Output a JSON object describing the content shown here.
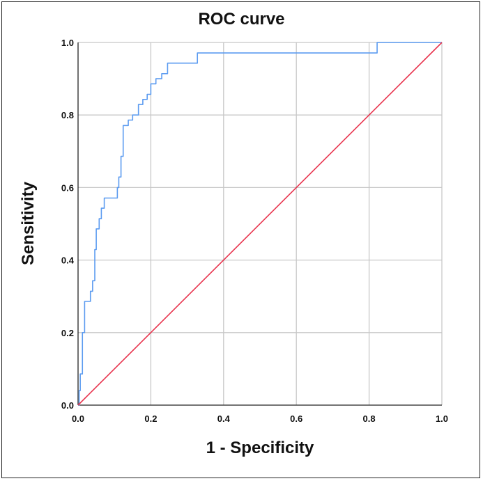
{
  "chart_data": {
    "type": "line",
    "title": "ROC curve",
    "xlabel": "1 - Specificity",
    "ylabel": "Sensitivity",
    "xlim": [
      0,
      1
    ],
    "ylim": [
      0,
      1
    ],
    "x_ticks": [
      "0.0",
      "0.2",
      "0.4",
      "0.6",
      "0.8",
      "1.0"
    ],
    "y_ticks": [
      "0.0",
      "0.2",
      "0.4",
      "0.6",
      "0.8",
      "1.0"
    ],
    "grid": true,
    "legend": "none",
    "colors": {
      "roc_curve": "#5b9bf0",
      "reference_line": "#e8344e",
      "grid": "#c8c8c8"
    },
    "series": [
      {
        "key": "roc_curve",
        "x": [
          0,
          0.003,
          0.003,
          0.006,
          0.006,
          0.012,
          0.012,
          0.018,
          0.018,
          0.034,
          0.034,
          0.04,
          0.04,
          0.046,
          0.046,
          0.05,
          0.05,
          0.058,
          0.058,
          0.064,
          0.064,
          0.072,
          0.072,
          0.108,
          0.108,
          0.112,
          0.112,
          0.118,
          0.118,
          0.124,
          0.124,
          0.138,
          0.138,
          0.15,
          0.15,
          0.166,
          0.166,
          0.178,
          0.178,
          0.19,
          0.19,
          0.2,
          0.2,
          0.214,
          0.214,
          0.23,
          0.23,
          0.246,
          0.246,
          0.328,
          0.328,
          0.812,
          0.812,
          0.822,
          0.822,
          1.0
        ],
        "y": [
          0,
          0,
          0.04,
          0.04,
          0.086,
          0.086,
          0.2,
          0.2,
          0.286,
          0.286,
          0.314,
          0.314,
          0.343,
          0.343,
          0.429,
          0.429,
          0.486,
          0.486,
          0.514,
          0.514,
          0.543,
          0.543,
          0.571,
          0.571,
          0.6,
          0.6,
          0.629,
          0.629,
          0.686,
          0.686,
          0.771,
          0.771,
          0.786,
          0.786,
          0.8,
          0.8,
          0.829,
          0.829,
          0.843,
          0.843,
          0.857,
          0.857,
          0.886,
          0.886,
          0.9,
          0.9,
          0.914,
          0.914,
          0.943,
          0.943,
          0.971,
          0.971,
          0.971,
          0.971,
          1.0,
          1.0
        ]
      },
      {
        "key": "reference_line",
        "x": [
          0,
          1
        ],
        "y": [
          0,
          1
        ]
      }
    ]
  }
}
